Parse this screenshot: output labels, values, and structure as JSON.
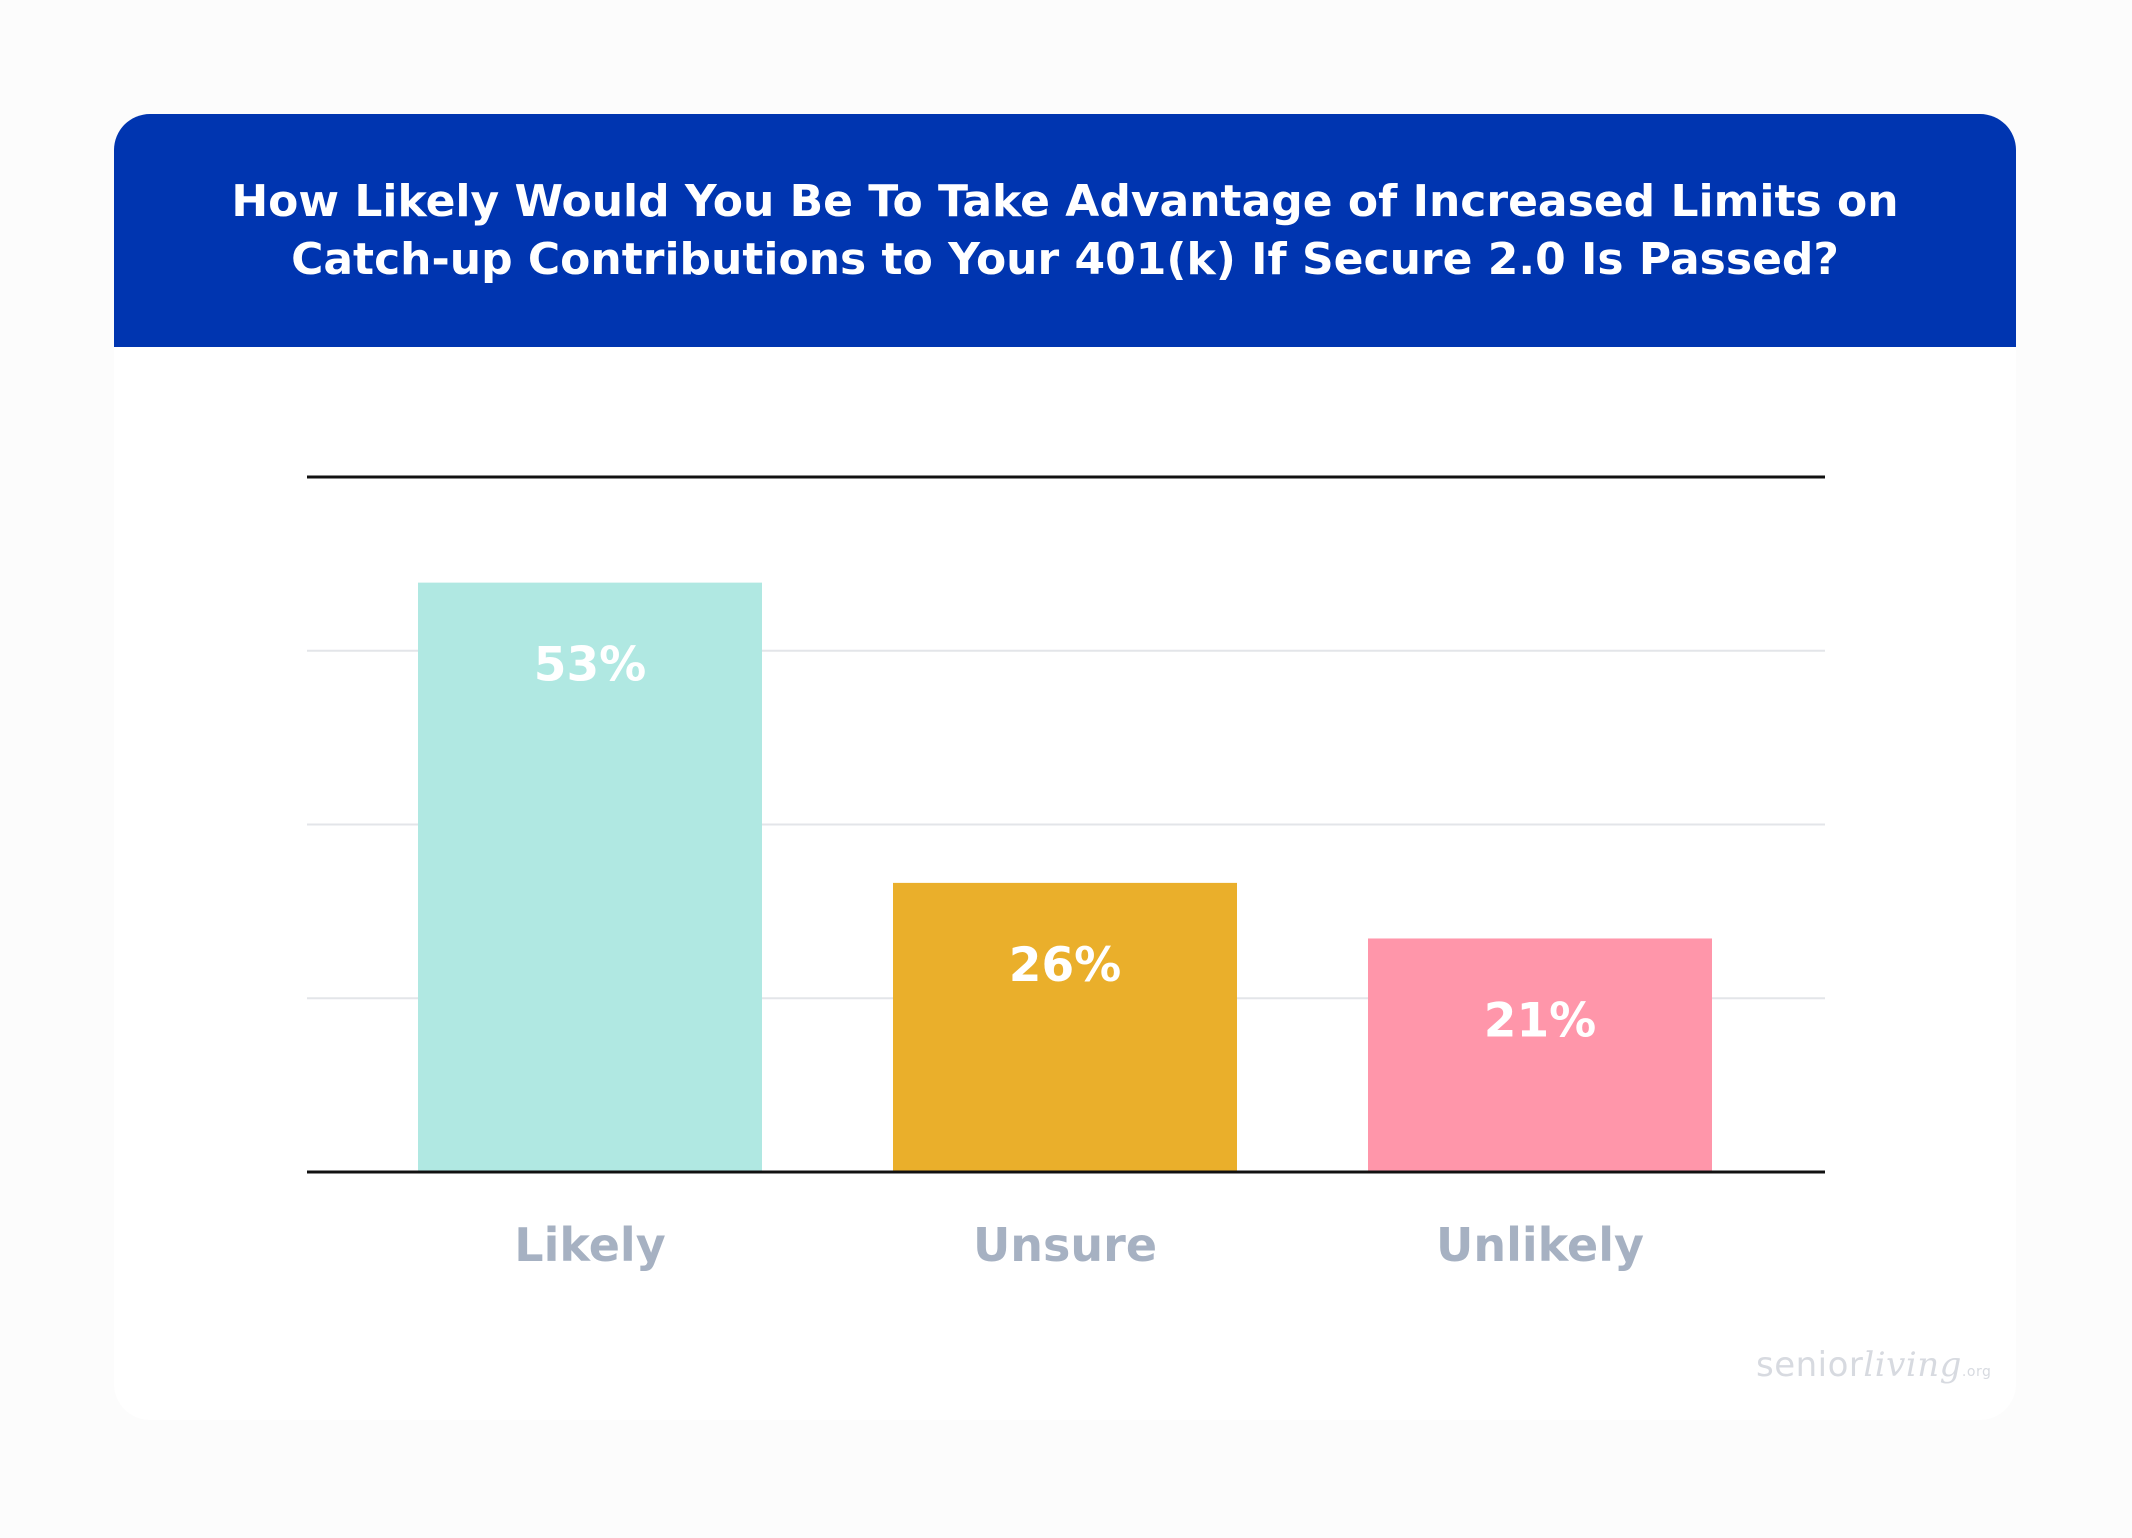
{
  "title": "How Likely Would You Be To Take Advantage of Increased Limits on Catch-up Contributions to Your 401(k) If Secure 2.0 Is Passed?",
  "logo": {
    "part1": "senior",
    "part2": "living",
    "part3": ".org"
  },
  "chart_data": {
    "type": "bar",
    "categories": [
      "Likely",
      "Unsure",
      "Unlikely"
    ],
    "values": [
      53,
      26,
      21
    ],
    "value_labels": [
      "53%",
      "26%",
      "21%"
    ],
    "colors": [
      "#b0e8e2",
      "#eaaf2b",
      "#ff96aa"
    ],
    "ylim": [
      0,
      62.5
    ],
    "gridlines": [
      15.625,
      31.25,
      46.875
    ],
    "grid": true,
    "legend": "none",
    "xlabel": "",
    "ylabel": ""
  }
}
